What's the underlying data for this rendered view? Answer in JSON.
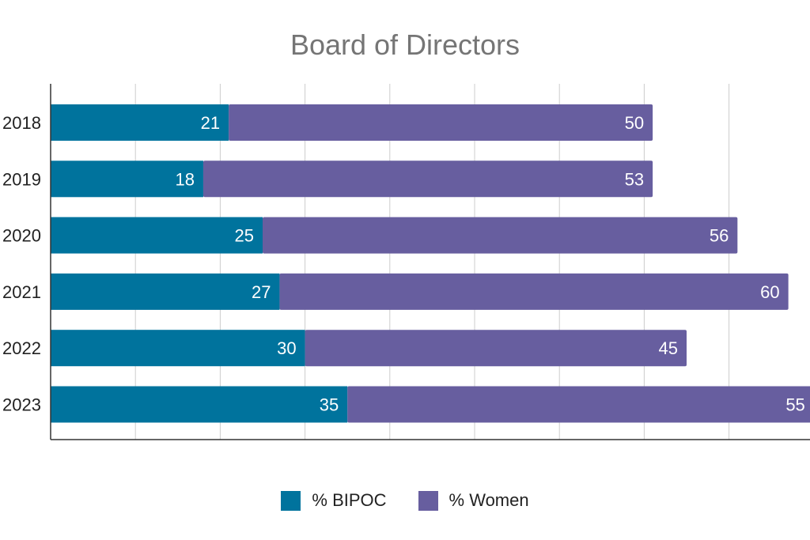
{
  "chart_data": {
    "type": "bar",
    "orientation": "horizontal",
    "stacked": true,
    "title": "Board of Directors",
    "categories": [
      "2018",
      "2019",
      "2020",
      "2021",
      "2022",
      "2023"
    ],
    "series": [
      {
        "name": "% BIPOC",
        "color": "#00739D",
        "values": [
          21,
          18,
          25,
          27,
          30,
          35
        ]
      },
      {
        "name": "% Women",
        "color": "#675E9F",
        "values": [
          50,
          53,
          56,
          60,
          45,
          55
        ]
      }
    ],
    "xlim": [
      0,
      90
    ],
    "grid": true,
    "legend_position": "bottom"
  }
}
